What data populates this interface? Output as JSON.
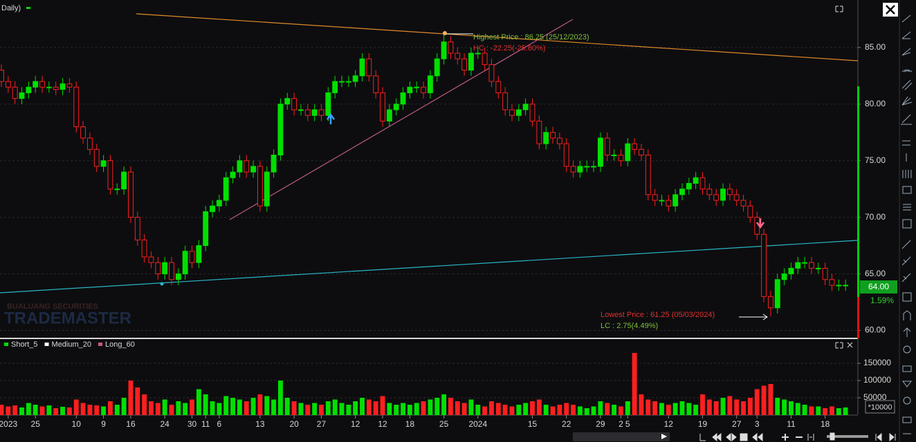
{
  "chart_data": {
    "type": "candlestick",
    "title": "Daily)",
    "up_color": "#00e000",
    "down_color": "#ff1f1f",
    "categories": [
      null,
      "2023",
      null,
      null,
      null,
      "25",
      null,
      null,
      null,
      null,
      null,
      "10",
      null,
      null,
      null,
      "9",
      null,
      null,
      null,
      "16",
      null,
      null,
      null,
      null,
      "24",
      null,
      null,
      null,
      "30",
      null,
      "11",
      null,
      "6",
      null,
      null,
      null,
      null,
      null,
      "13",
      null,
      null,
      null,
      null,
      "20",
      null,
      null,
      null,
      "27",
      null,
      null,
      null,
      null,
      "12",
      null,
      null,
      null,
      "12",
      null,
      null,
      null,
      "18",
      null,
      null,
      null,
      null,
      "25",
      null,
      null,
      null,
      null,
      "2024",
      null,
      null,
      null,
      null,
      null,
      null,
      null,
      "15",
      null,
      null,
      null,
      null,
      "22",
      null,
      null,
      null,
      null,
      "29",
      null,
      null,
      "2",
      "5",
      null,
      null,
      null,
      null,
      null,
      "12",
      null,
      null,
      null,
      null,
      "19",
      null,
      null,
      null,
      null,
      "27",
      null,
      null,
      "3",
      null,
      null,
      null,
      null,
      "11",
      null,
      null,
      null,
      null,
      "18",
      null,
      null,
      null
    ],
    "open": [
      83,
      82,
      81.5,
      80.5,
      81,
      81.5,
      82,
      81.5,
      81.5,
      81.3,
      81.8,
      81.5,
      78,
      77,
      76,
      74.5,
      75,
      72.5,
      72.5,
      74,
      70,
      68,
      66.5,
      66,
      65,
      66,
      64.5,
      65,
      67,
      66,
      67.5,
      70.5,
      71,
      71.5,
      73.5,
      74,
      75,
      74,
      74.5,
      71,
      74,
      75.5,
      80,
      80.5,
      79.5,
      79.5,
      79,
      79.5,
      79,
      81,
      82,
      82,
      82,
      82.5,
      84,
      82.5,
      81,
      78.5,
      79.5,
      80,
      81,
      81.5,
      81.5,
      81,
      82.5,
      84,
      85.5,
      84.5,
      84,
      83,
      84.5,
      84.5,
      83.5,
      82,
      81,
      79.5,
      79,
      79.5,
      80,
      78.5,
      76.5,
      77.5,
      77,
      76.5,
      74.5,
      74,
      74.5,
      74.5,
      74.5,
      77,
      75.5,
      75.5,
      75,
      76.5,
      76,
      75.5,
      72,
      71.5,
      71.5,
      71,
      72,
      72.5,
      73,
      73.5,
      72.5,
      72,
      71.5,
      72.5,
      72,
      71.5,
      71,
      70,
      68.5,
      63,
      62,
      64.5,
      65,
      65.5,
      66,
      66,
      65.5,
      65.5,
      64.5,
      64,
      64
    ],
    "high": [
      83.5,
      82.5,
      82,
      81.5,
      82,
      82.5,
      82.5,
      82,
      82,
      82.3,
      82.3,
      82,
      78.5,
      77.5,
      76.5,
      75.5,
      75.5,
      73,
      74.5,
      74.5,
      70.5,
      68.5,
      67,
      66.5,
      66.5,
      66.5,
      65.5,
      67.5,
      67.5,
      68,
      71,
      71.5,
      72,
      74,
      74.5,
      75.5,
      75.5,
      75,
      75,
      74.5,
      76,
      80.5,
      81,
      81,
      80,
      80,
      80,
      80,
      81.5,
      82.5,
      82.5,
      82.5,
      83,
      84.5,
      84.5,
      83,
      81.5,
      80,
      80.5,
      81.5,
      82,
      82,
      82,
      83,
      84.5,
      86.25,
      86,
      85,
      84.5,
      85,
      85,
      85,
      84,
      82.5,
      81.5,
      80,
      80,
      80.5,
      80.5,
      79,
      78,
      78,
      77.5,
      77,
      75,
      75,
      75,
      75,
      77.5,
      77.5,
      76,
      76,
      77,
      77,
      76.5,
      76,
      72.5,
      72,
      72,
      72.5,
      73,
      73.5,
      74,
      74,
      73,
      72.5,
      73,
      73,
      72.5,
      72,
      71.5,
      70.5,
      69,
      63.5,
      65,
      65.5,
      66,
      66.5,
      66.5,
      66.5,
      66,
      66,
      65,
      64.5,
      64.5
    ],
    "low": [
      81.5,
      81,
      80,
      80,
      80.5,
      81,
      81,
      81,
      80.8,
      80.8,
      81,
      77.5,
      76.5,
      75.5,
      74,
      74,
      72,
      72,
      72,
      69.5,
      67.5,
      66,
      65.5,
      64.5,
      64.5,
      64,
      64,
      64.5,
      65.5,
      65.5,
      67,
      70,
      70.5,
      71,
      73,
      73.5,
      73.5,
      73.5,
      70.5,
      70.5,
      73.5,
      75,
      79.5,
      79,
      79,
      78.5,
      78.5,
      78.5,
      78.5,
      80.5,
      81.5,
      81.5,
      81.5,
      82,
      82,
      80.5,
      78,
      78,
      79,
      79.5,
      80.5,
      81,
      80.5,
      80.5,
      82,
      83.5,
      84,
      83.5,
      82.5,
      82.5,
      84,
      83,
      81.5,
      80.5,
      79,
      78.5,
      78.5,
      79,
      78,
      76,
      76,
      76.5,
      76,
      74,
      73.5,
      73.5,
      74,
      74,
      74,
      75,
      75,
      74.5,
      74.5,
      75.5,
      75,
      71.5,
      71,
      71,
      70.5,
      70.5,
      71.5,
      72,
      72.5,
      72,
      71.5,
      71,
      71,
      71.5,
      71,
      70.5,
      69.5,
      68,
      62.5,
      61.25,
      61.5,
      64,
      64.5,
      65,
      65.5,
      65,
      65,
      64,
      63.5,
      63.5,
      63.5
    ],
    "close": [
      82,
      81.5,
      80.5,
      81,
      81.5,
      82,
      81.5,
      81.5,
      81.3,
      81.8,
      81.5,
      78,
      77,
      76,
      74.5,
      75,
      72.5,
      72.5,
      74,
      70,
      68,
      66.5,
      66,
      65,
      66,
      64.5,
      65,
      67,
      66,
      67.5,
      70.5,
      71,
      71.5,
      73.5,
      74,
      75,
      74,
      74.5,
      71,
      74,
      75.5,
      80,
      80.5,
      79.5,
      79.5,
      79,
      79.5,
      79,
      81,
      82,
      82,
      82,
      82.5,
      84,
      82.5,
      81,
      78.5,
      79.5,
      80,
      81,
      81.5,
      81.5,
      81,
      82.5,
      84,
      85.5,
      84.5,
      84,
      83,
      84.5,
      84.5,
      83.5,
      82,
      81,
      79.5,
      79,
      79.5,
      80,
      78.5,
      76.5,
      77.5,
      77,
      76.5,
      74.5,
      74,
      74.5,
      74.5,
      74.5,
      77,
      75.5,
      75.5,
      75,
      76.5,
      76,
      75.5,
      72,
      71.5,
      71.5,
      71,
      72,
      72.5,
      73,
      73.5,
      72.5,
      72,
      71.5,
      72.5,
      72,
      71.5,
      71,
      70,
      68.5,
      63,
      62,
      64.5,
      65,
      65.5,
      66,
      66,
      65.5,
      65.5,
      64.5,
      64,
      64,
      64
    ],
    "volume": [
      30000,
      25000,
      28000,
      22000,
      35000,
      30000,
      25000,
      28000,
      20000,
      24000,
      22000,
      45000,
      35000,
      30000,
      28000,
      25000,
      40000,
      30000,
      50000,
      100000,
      80000,
      60000,
      40000,
      35000,
      45000,
      30000,
      40000,
      35000,
      45000,
      75000,
      60000,
      40000,
      35000,
      55000,
      50000,
      45000,
      40000,
      50000,
      60000,
      55000,
      45000,
      100000,
      50000,
      40000,
      35000,
      30000,
      35000,
      30000,
      40000,
      45000,
      35000,
      30000,
      40000,
      50000,
      45000,
      40000,
      55000,
      35000,
      30000,
      35000,
      30000,
      35000,
      40000,
      45000,
      50000,
      60000,
      50000,
      40000,
      35000,
      45000,
      30000,
      25000,
      40000,
      35000,
      30000,
      25000,
      30000,
      35000,
      40000,
      45000,
      30000,
      25000,
      30000,
      35000,
      30000,
      25000,
      20000,
      25000,
      40000,
      35000,
      30000,
      25000,
      40000,
      180000,
      60000,
      45000,
      40000,
      35000,
      30000,
      35000,
      40000,
      35000,
      30000,
      60000,
      45000,
      40000,
      50000,
      55000,
      45000,
      40000,
      50000,
      75000,
      85000,
      90000,
      50000,
      45000,
      40000,
      35000,
      30000,
      25000,
      25000,
      20000,
      25000,
      20000,
      22000
    ],
    "ylim": [
      59.3,
      89.2
    ],
    "yticks": [
      {
        "value": 60,
        "label": "60.00"
      },
      {
        "value": 65,
        "label": "65.00"
      },
      {
        "value": 70,
        "label": "70.00"
      },
      {
        "value": 75,
        "label": "75.00"
      },
      {
        "value": 80,
        "label": "80.00"
      },
      {
        "value": 85,
        "label": "85.00"
      }
    ],
    "volume_ylim": [
      0,
      218000
    ],
    "volume_yticks": [
      50000,
      100000,
      150000
    ],
    "volume_unit_label": "*10000",
    "grid": true,
    "indicators": [
      {
        "name": "Short_5",
        "color": "#00e000"
      },
      {
        "name": "Medium_20",
        "color": "#ffffff"
      },
      {
        "name": "Long_60",
        "color": "#d0508a"
      }
    ],
    "last_price_label": "64.00",
    "change_label": "1.59%",
    "annotations": {
      "highest": "Highest Price : 86.25 (25/12/2023)",
      "hc": "HC : -22.25(-25.80%)",
      "lowest": "Lowest Price : 61.25 (05/03/2024)",
      "lc": "LC : 2.75(4.49%)"
    },
    "watermark": {
      "company": "BUALUANG SECURITIES",
      "product": "TRADEMASTER"
    }
  }
}
